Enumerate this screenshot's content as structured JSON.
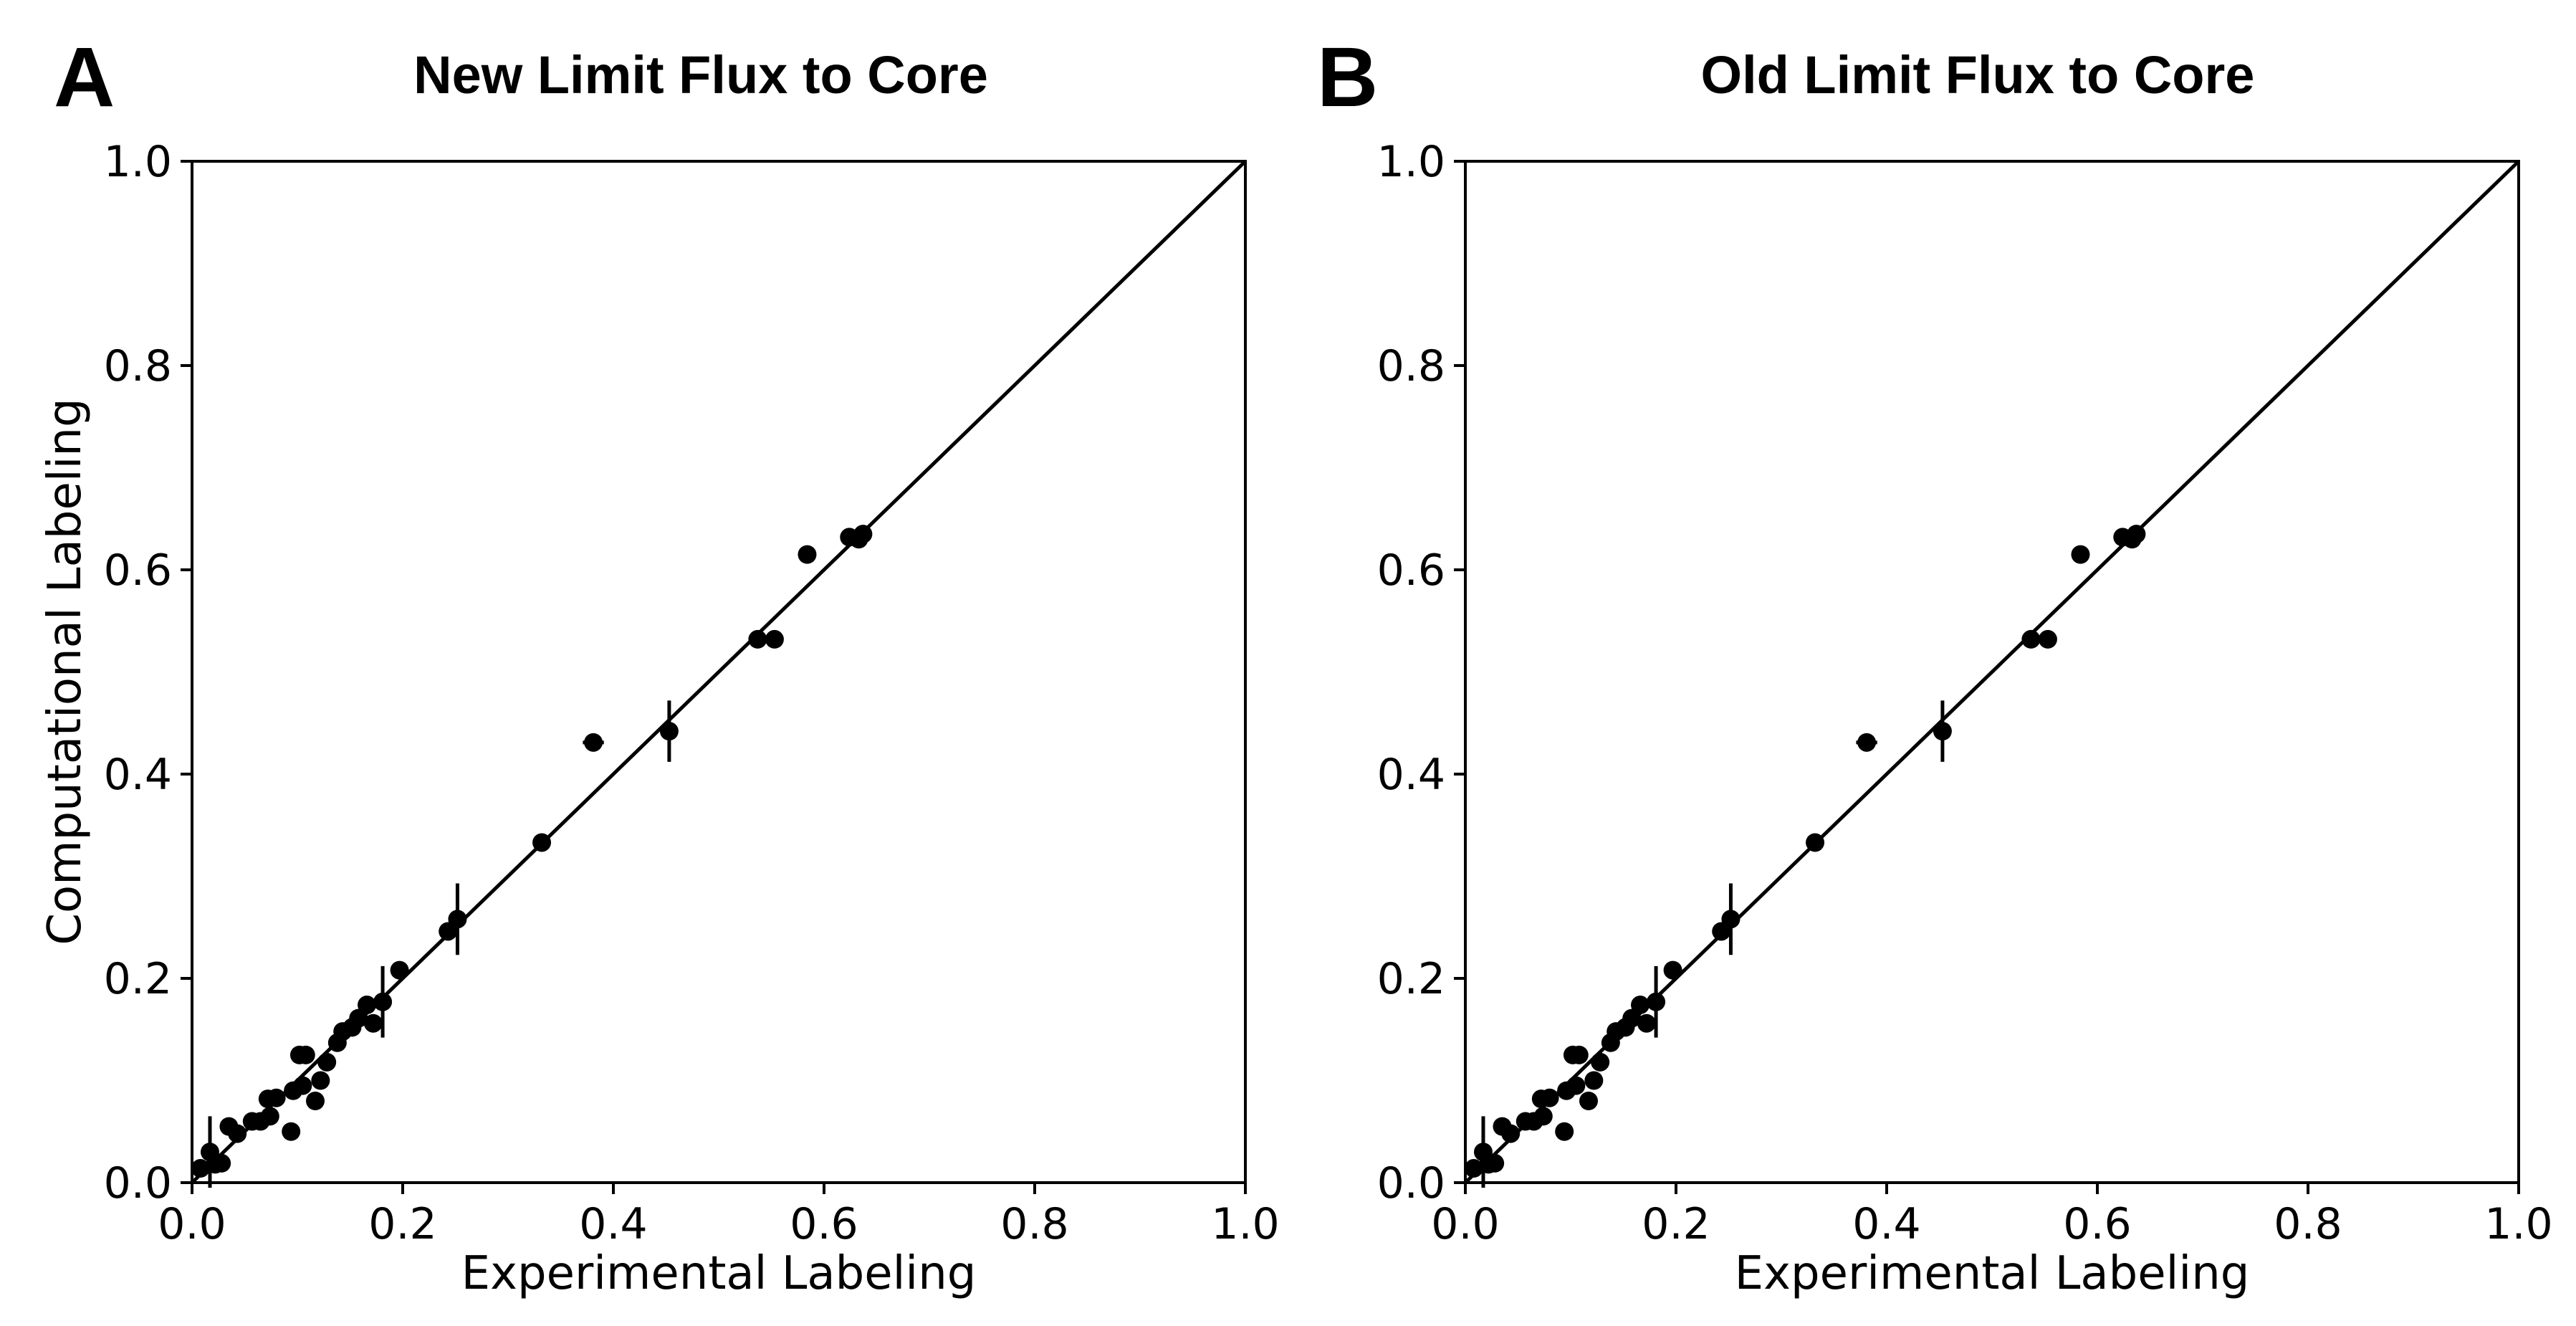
{
  "chart_data": [
    {
      "type": "scatter",
      "panel_label": "A",
      "title": "New Limit Flux to Core",
      "xlabel": "Experimental Labeling",
      "ylabel": "Computational Labeling",
      "xlim": [
        0.0,
        1.0
      ],
      "ylim": [
        0.0,
        1.0
      ],
      "xticks": [
        "0.0",
        "0.2",
        "0.4",
        "0.6",
        "0.8",
        "1.0"
      ],
      "yticks": [
        "0.0",
        "0.2",
        "0.4",
        "0.6",
        "0.8",
        "1.0"
      ],
      "grid": false,
      "reference_line": {
        "from": [
          0,
          0
        ],
        "to": [
          1,
          1
        ]
      },
      "points": [
        {
          "x": 0.008,
          "y": 0.014
        },
        {
          "x": 0.017,
          "y": 0.03,
          "yerr": 0.035
        },
        {
          "x": 0.022,
          "y": 0.018
        },
        {
          "x": 0.028,
          "y": 0.019
        },
        {
          "x": 0.035,
          "y": 0.055
        },
        {
          "x": 0.043,
          "y": 0.048
        },
        {
          "x": 0.057,
          "y": 0.06
        },
        {
          "x": 0.065,
          "y": 0.06
        },
        {
          "x": 0.072,
          "y": 0.082
        },
        {
          "x": 0.074,
          "y": 0.065
        },
        {
          "x": 0.08,
          "y": 0.083
        },
        {
          "x": 0.094,
          "y": 0.05
        },
        {
          "x": 0.096,
          "y": 0.09
        },
        {
          "x": 0.102,
          "y": 0.125
        },
        {
          "x": 0.108,
          "y": 0.125
        },
        {
          "x": 0.105,
          "y": 0.095
        },
        {
          "x": 0.117,
          "y": 0.08
        },
        {
          "x": 0.122,
          "y": 0.1
        },
        {
          "x": 0.128,
          "y": 0.118
        },
        {
          "x": 0.138,
          "y": 0.137
        },
        {
          "x": 0.143,
          "y": 0.148
        },
        {
          "x": 0.152,
          "y": 0.152
        },
        {
          "x": 0.158,
          "y": 0.161
        },
        {
          "x": 0.166,
          "y": 0.174
        },
        {
          "x": 0.172,
          "y": 0.156
        },
        {
          "x": 0.181,
          "y": 0.177,
          "yerr": 0.035
        },
        {
          "x": 0.197,
          "y": 0.208
        },
        {
          "x": 0.243,
          "y": 0.246
        },
        {
          "x": 0.252,
          "y": 0.258,
          "yerr": 0.035
        },
        {
          "x": 0.332,
          "y": 0.333
        },
        {
          "x": 0.381,
          "y": 0.431,
          "xerr": 0.01
        },
        {
          "x": 0.453,
          "y": 0.442,
          "yerr": 0.03
        },
        {
          "x": 0.537,
          "y": 0.532
        },
        {
          "x": 0.553,
          "y": 0.532
        },
        {
          "x": 0.584,
          "y": 0.615
        },
        {
          "x": 0.624,
          "y": 0.632
        },
        {
          "x": 0.633,
          "y": 0.63
        },
        {
          "x": 0.637,
          "y": 0.635
        }
      ]
    },
    {
      "type": "scatter",
      "panel_label": "B",
      "title": "Old Limit Flux to Core",
      "xlabel": "Experimental Labeling",
      "ylabel": "",
      "xlim": [
        0.0,
        1.0
      ],
      "ylim": [
        0.0,
        1.0
      ],
      "xticks": [
        "0.0",
        "0.2",
        "0.4",
        "0.6",
        "0.8",
        "1.0"
      ],
      "yticks": [
        "0.0",
        "0.2",
        "0.4",
        "0.6",
        "0.8",
        "1.0"
      ],
      "grid": false,
      "reference_line": {
        "from": [
          0,
          0
        ],
        "to": [
          1,
          1
        ]
      },
      "points": [
        {
          "x": 0.008,
          "y": 0.014
        },
        {
          "x": 0.017,
          "y": 0.03,
          "yerr": 0.035
        },
        {
          "x": 0.022,
          "y": 0.018
        },
        {
          "x": 0.028,
          "y": 0.019
        },
        {
          "x": 0.035,
          "y": 0.055
        },
        {
          "x": 0.043,
          "y": 0.048
        },
        {
          "x": 0.057,
          "y": 0.06
        },
        {
          "x": 0.065,
          "y": 0.06
        },
        {
          "x": 0.072,
          "y": 0.082
        },
        {
          "x": 0.074,
          "y": 0.065
        },
        {
          "x": 0.08,
          "y": 0.083
        },
        {
          "x": 0.094,
          "y": 0.05
        },
        {
          "x": 0.096,
          "y": 0.09
        },
        {
          "x": 0.102,
          "y": 0.125
        },
        {
          "x": 0.108,
          "y": 0.125
        },
        {
          "x": 0.105,
          "y": 0.095
        },
        {
          "x": 0.117,
          "y": 0.08
        },
        {
          "x": 0.122,
          "y": 0.1
        },
        {
          "x": 0.128,
          "y": 0.118
        },
        {
          "x": 0.138,
          "y": 0.137
        },
        {
          "x": 0.143,
          "y": 0.148
        },
        {
          "x": 0.152,
          "y": 0.152
        },
        {
          "x": 0.158,
          "y": 0.161
        },
        {
          "x": 0.166,
          "y": 0.174
        },
        {
          "x": 0.172,
          "y": 0.156
        },
        {
          "x": 0.181,
          "y": 0.177,
          "yerr": 0.035
        },
        {
          "x": 0.197,
          "y": 0.208
        },
        {
          "x": 0.243,
          "y": 0.246
        },
        {
          "x": 0.252,
          "y": 0.258,
          "yerr": 0.035
        },
        {
          "x": 0.332,
          "y": 0.333
        },
        {
          "x": 0.381,
          "y": 0.431,
          "xerr": 0.01
        },
        {
          "x": 0.453,
          "y": 0.442,
          "yerr": 0.03
        },
        {
          "x": 0.537,
          "y": 0.532
        },
        {
          "x": 0.553,
          "y": 0.532
        },
        {
          "x": 0.584,
          "y": 0.615
        },
        {
          "x": 0.624,
          "y": 0.632
        },
        {
          "x": 0.633,
          "y": 0.63
        },
        {
          "x": 0.637,
          "y": 0.635
        }
      ]
    }
  ]
}
